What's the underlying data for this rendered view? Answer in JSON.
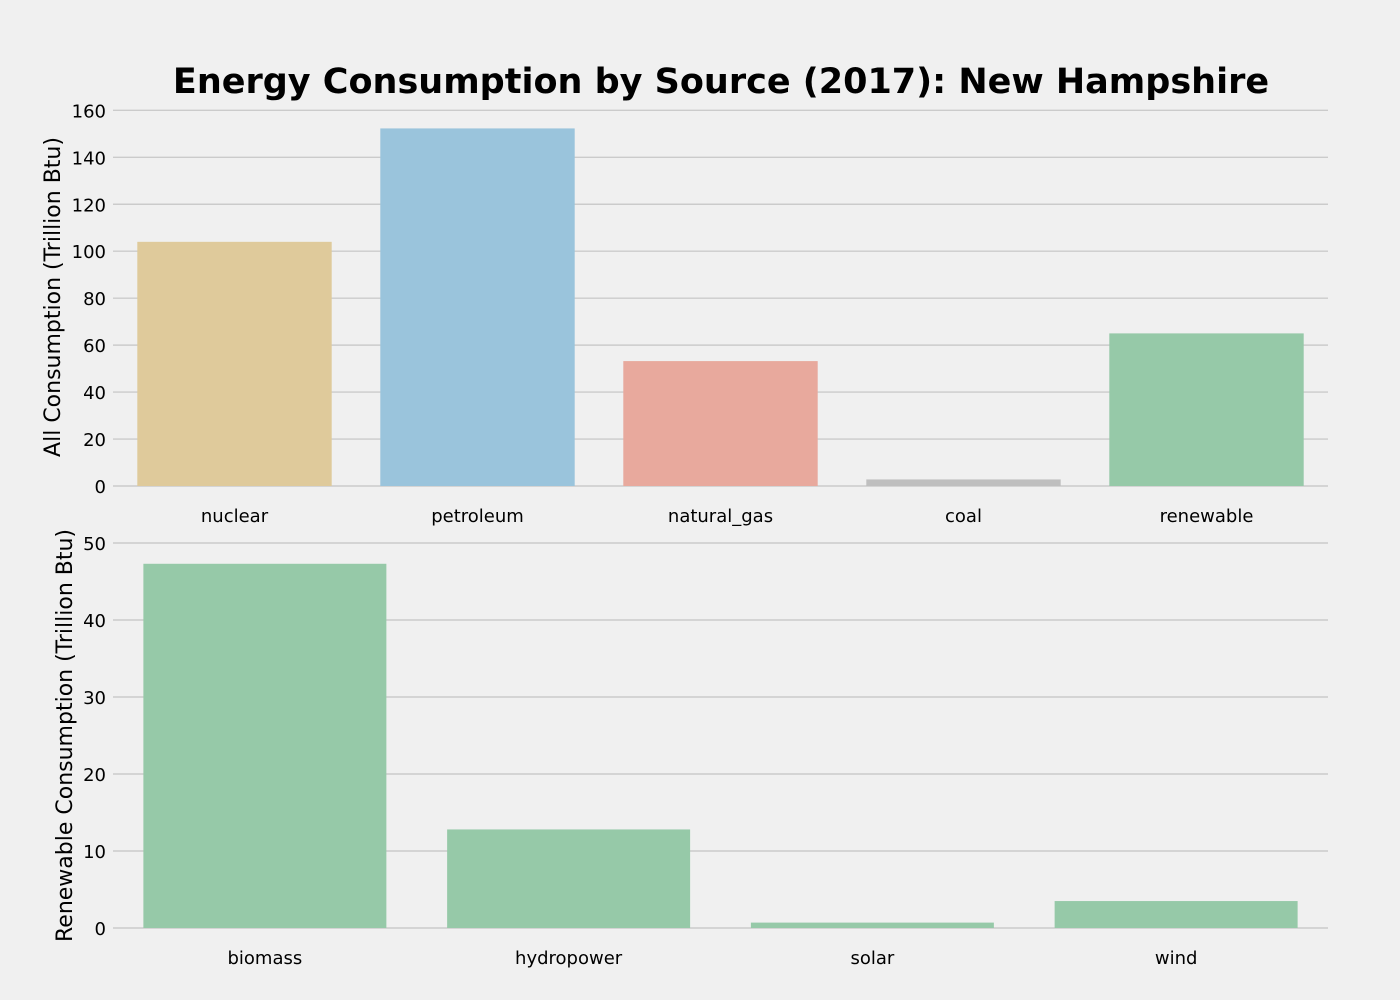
{
  "figure": {
    "title": "Energy Consumption by Source (2017): New Hampshire",
    "background": "#f0f0f0"
  },
  "chart_data": [
    {
      "type": "bar",
      "title": "",
      "xlabel": "",
      "ylabel": "All Consumption (Trillion Btu)",
      "categories": [
        "nuclear",
        "petroleum",
        "natural_gas",
        "coal",
        "renewable"
      ],
      "values": [
        104,
        152.3,
        53.2,
        2.8,
        65
      ],
      "colors": [
        "#e5ae38",
        "#30a2da",
        "#fc4f30",
        "#8b8b8b",
        "#6d904f"
      ],
      "bar_colors_rendered": [
        "#dfca9b",
        "#9ac4dc",
        "#e8a99d",
        "#bfbfbf",
        "#96c9a8"
      ],
      "ylim": [
        0,
        161
      ],
      "yticks": [
        0,
        20,
        40,
        60,
        80,
        100,
        120,
        140,
        160
      ],
      "grid": true
    },
    {
      "type": "bar",
      "title": "",
      "xlabel": "",
      "ylabel": "Renewable Consumption (Trillion Btu)",
      "categories": [
        "biomass",
        "hydropower",
        "solar",
        "wind"
      ],
      "values": [
        47.3,
        12.8,
        0.7,
        3.5
      ],
      "colors": [
        "#2ca02c",
        "#2ca02c",
        "#2ca02c",
        "#2ca02c"
      ],
      "bar_colors_rendered": [
        "#96c9a8",
        "#96c9a8",
        "#96c9a8",
        "#96c9a8"
      ],
      "ylim": [
        0,
        50
      ],
      "yticks": [
        0,
        10,
        20,
        30,
        40,
        50
      ],
      "grid": true
    }
  ]
}
